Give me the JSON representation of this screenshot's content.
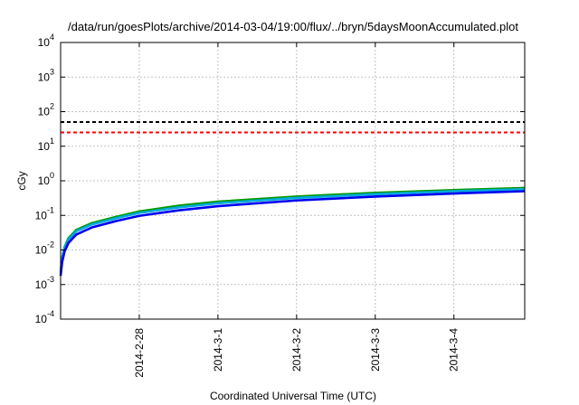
{
  "chart_data": {
    "type": "line",
    "title": "/data/run/goesPlots/archive/2014-03-04/19:00/flux/../bryn/5daysMoonAccumulated.plot",
    "xlabel": "Coordinated Universal Time (UTC)",
    "ylabel": "cGy",
    "y_scale": "log",
    "ylim": [
      0.0001,
      10000
    ],
    "xlim": [
      0,
      5.9
    ],
    "y_ticks": [
      {
        "base": "10",
        "exp": "-4",
        "value": 0.0001
      },
      {
        "base": "10",
        "exp": "-3",
        "value": 0.001
      },
      {
        "base": "10",
        "exp": "-2",
        "value": 0.01
      },
      {
        "base": "10",
        "exp": "-1",
        "value": 0.1
      },
      {
        "base": "10",
        "exp": "0",
        "value": 1
      },
      {
        "base": "10",
        "exp": "1",
        "value": 10
      },
      {
        "base": "10",
        "exp": "2",
        "value": 100
      },
      {
        "base": "10",
        "exp": "3",
        "value": 1000
      },
      {
        "base": "10",
        "exp": "4",
        "value": 10000
      }
    ],
    "x_ticks": [
      {
        "label": "2014-2-28",
        "x": 1.0
      },
      {
        "label": "2014-3-1",
        "x": 2.0
      },
      {
        "label": "2014-3-2",
        "x": 3.0
      },
      {
        "label": "2014-3-3",
        "x": 4.0
      },
      {
        "label": "2014-3-4",
        "x": 5.0
      }
    ],
    "grid": true,
    "series": [
      {
        "color": "#009900",
        "x": [
          0,
          0.02,
          0.05,
          0.1,
          0.2,
          0.4,
          0.7,
          1.0,
          1.5,
          2.0,
          3.0,
          4.0,
          5.0,
          5.9
        ],
        "values": [
          0.0025,
          0.006,
          0.012,
          0.022,
          0.038,
          0.06,
          0.09,
          0.13,
          0.19,
          0.25,
          0.35,
          0.45,
          0.54,
          0.62
        ]
      },
      {
        "color": "#00aadd",
        "x": [
          0,
          0.02,
          0.05,
          0.1,
          0.2,
          0.4,
          0.7,
          1.0,
          1.5,
          2.0,
          3.0,
          4.0,
          5.0,
          5.9
        ],
        "values": [
          0.0022,
          0.0055,
          0.011,
          0.02,
          0.035,
          0.055,
          0.082,
          0.118,
          0.17,
          0.225,
          0.32,
          0.41,
          0.5,
          0.57
        ]
      },
      {
        "color": "#0000ee",
        "x": [
          0,
          0.02,
          0.05,
          0.1,
          0.2,
          0.4,
          0.7,
          1.0,
          1.5,
          2.0,
          3.0,
          4.0,
          5.0,
          5.9
        ],
        "values": [
          0.0018,
          0.0045,
          0.009,
          0.016,
          0.028,
          0.045,
          0.068,
          0.097,
          0.14,
          0.185,
          0.27,
          0.35,
          0.43,
          0.5
        ]
      }
    ],
    "thresholds": [
      {
        "color": "#000000",
        "value": 50,
        "dash": "dashed"
      },
      {
        "color": "#ff0000",
        "value": 25,
        "dash": "dashed"
      }
    ]
  }
}
